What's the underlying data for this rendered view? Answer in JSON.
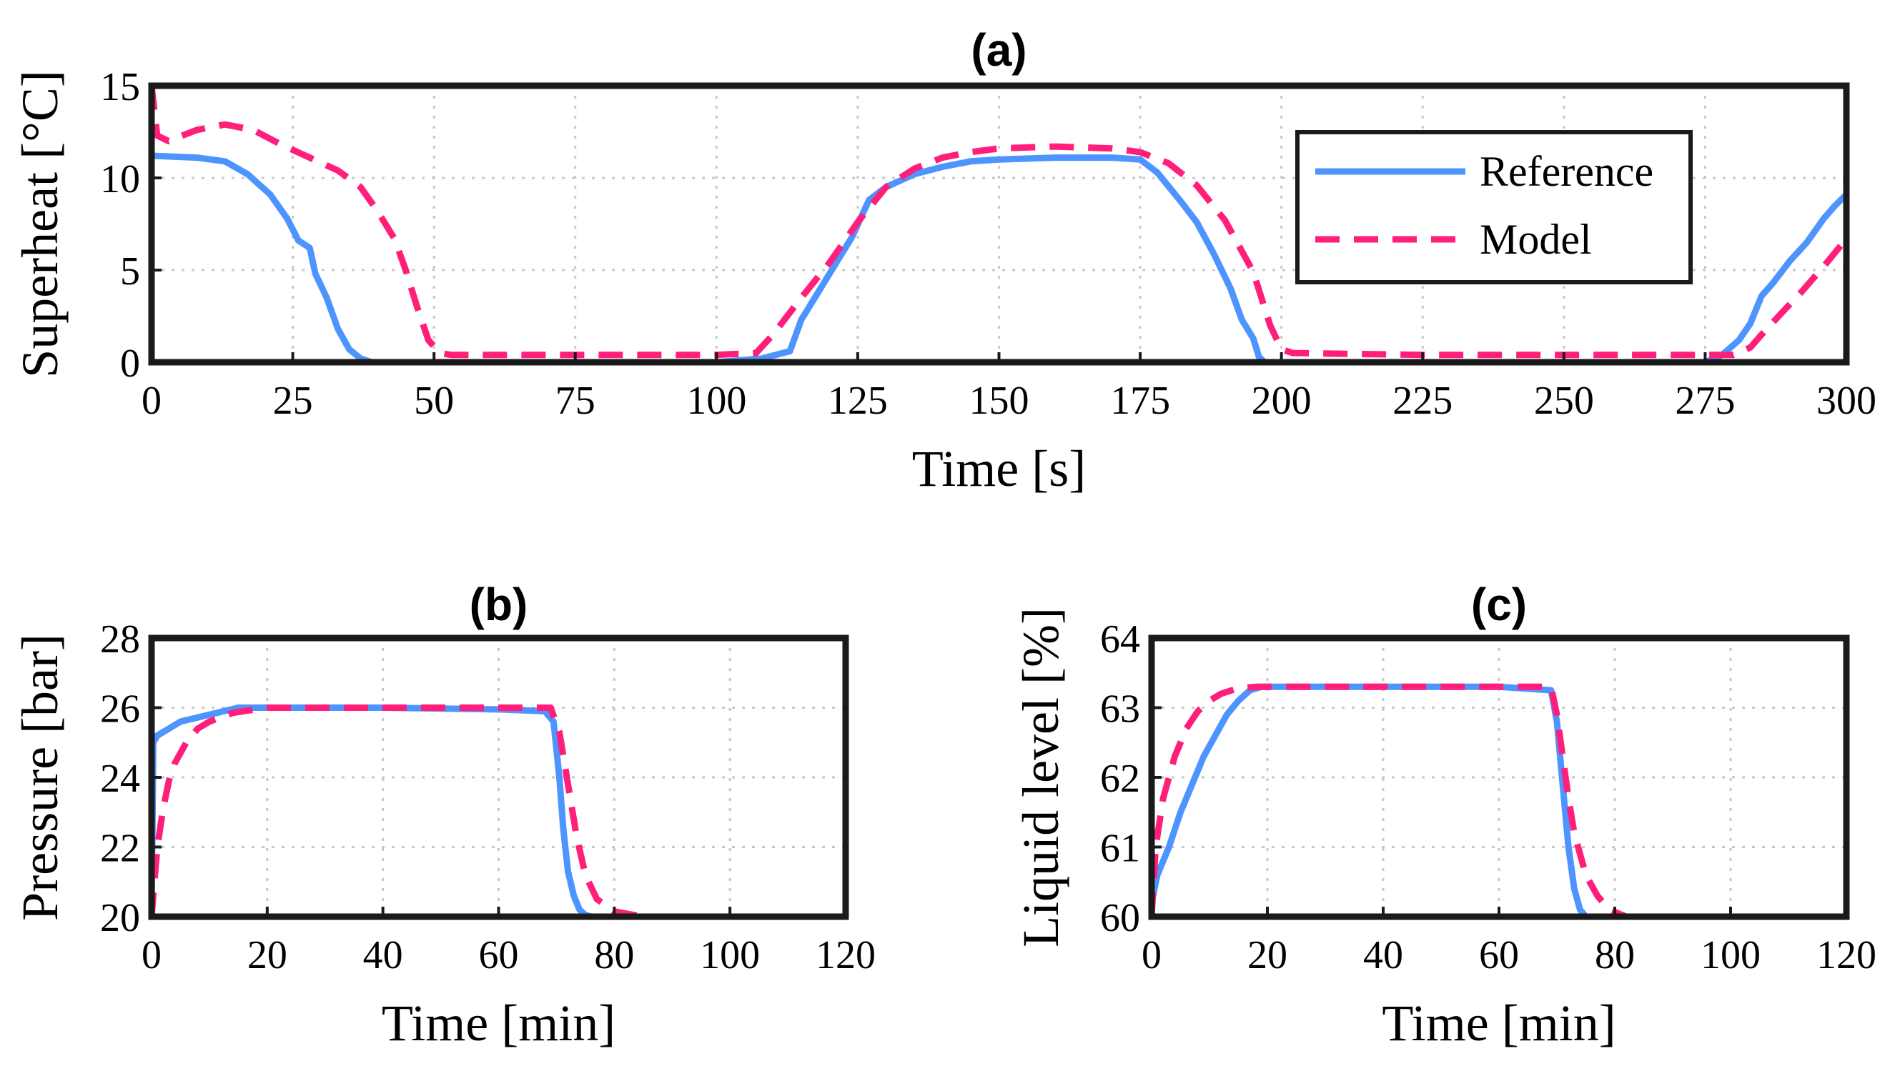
{
  "chart_data": [
    {
      "id": "a",
      "type": "line",
      "title": "(a)",
      "xlabel": "Time [s]",
      "ylabel": "Superheat [°C]",
      "xlim": [
        0,
        300
      ],
      "ylim": [
        0,
        15
      ],
      "xticks": [
        0,
        25,
        50,
        75,
        100,
        125,
        150,
        175,
        200,
        225,
        250,
        275,
        300
      ],
      "yticks": [
        0,
        5,
        10,
        15
      ],
      "grid": true,
      "legend": {
        "location": "top-right",
        "entries": [
          "Reference",
          "Model"
        ]
      },
      "series": [
        {
          "name": "Reference",
          "color": "#4d94ff",
          "style": "solid",
          "x": [
            0,
            8,
            13,
            17,
            21,
            24,
            26,
            28,
            29,
            31,
            33,
            35,
            37,
            39,
            45,
            60,
            80,
            100,
            108,
            113,
            115,
            118,
            121,
            124,
            127,
            130,
            135,
            140,
            145,
            150,
            160,
            170,
            175,
            178,
            182,
            185,
            188,
            191,
            193,
            195,
            196,
            197,
            200,
            225,
            250,
            275,
            278,
            281,
            283,
            285,
            287,
            290,
            293,
            296,
            298,
            300
          ],
          "y": [
            11.2,
            11.1,
            10.9,
            10.2,
            9.1,
            7.8,
            6.6,
            6.2,
            4.8,
            3.5,
            1.8,
            0.7,
            0.2,
            0,
            0,
            0,
            0,
            0,
            0.2,
            0.6,
            2.3,
            3.8,
            5.3,
            6.8,
            8.8,
            9.5,
            10.2,
            10.6,
            10.9,
            11.0,
            11.1,
            11.1,
            11.0,
            10.3,
            8.8,
            7.6,
            5.9,
            4.0,
            2.3,
            1.3,
            0.3,
            0,
            0,
            0,
            0,
            0,
            0.4,
            1.2,
            2.1,
            3.6,
            4.3,
            5.5,
            6.5,
            7.8,
            8.5,
            9.1
          ]
        },
        {
          "name": "Model",
          "color": "#ff1f7a",
          "style": "dashed",
          "x": [
            0,
            1,
            3,
            8,
            13,
            18,
            23,
            28,
            33,
            37,
            40,
            43,
            45,
            47,
            49,
            51,
            53,
            60,
            80,
            100,
            107,
            110,
            115,
            120,
            125,
            130,
            135,
            140,
            145,
            150,
            160,
            170,
            175,
            180,
            185,
            190,
            195,
            198,
            200,
            202,
            225,
            250,
            275,
            280,
            283,
            285,
            288,
            292,
            296,
            300
          ],
          "y": [
            15,
            12.3,
            12.0,
            12.6,
            12.9,
            12.6,
            11.8,
            11.1,
            10.4,
            9.5,
            8.2,
            6.7,
            5.0,
            3.0,
            1.2,
            0.5,
            0.4,
            0.4,
            0.4,
            0.4,
            0.5,
            1.5,
            3.5,
            5.4,
            7.6,
            9.5,
            10.5,
            11.1,
            11.4,
            11.6,
            11.7,
            11.6,
            11.4,
            10.8,
            9.6,
            7.7,
            4.9,
            2.0,
            0.7,
            0.5,
            0.4,
            0.4,
            0.4,
            0.4,
            0.8,
            1.5,
            2.5,
            3.8,
            5.2,
            6.7
          ]
        }
      ]
    },
    {
      "id": "b",
      "type": "line",
      "title": "(b)",
      "xlabel": "Time [min]",
      "ylabel": "Pressure [bar]",
      "xlim": [
        0,
        120
      ],
      "ylim": [
        20,
        28
      ],
      "xticks": [
        0,
        20,
        40,
        60,
        80,
        100,
        120
      ],
      "yticks": [
        20,
        22,
        24,
        26,
        28
      ],
      "grid": true,
      "series": [
        {
          "name": "Reference",
          "color": "#4d94ff",
          "style": "solid",
          "x": [
            0,
            0.3,
            1,
            3,
            5,
            10,
            15,
            20,
            40,
            60,
            68,
            69.5,
            70.5,
            71.2,
            72,
            73,
            74,
            75,
            76,
            78
          ],
          "y": [
            20,
            25.0,
            25.2,
            25.4,
            25.6,
            25.8,
            26.0,
            26.0,
            26.0,
            25.95,
            25.9,
            25.6,
            24.0,
            22.5,
            21.3,
            20.6,
            20.2,
            20.05,
            20.0,
            20.0
          ]
        },
        {
          "name": "Model",
          "color": "#ff1f7a",
          "style": "dashed",
          "x": [
            0,
            1,
            2,
            3,
            4,
            6,
            8,
            10,
            14,
            20,
            40,
            60,
            69,
            70.5,
            71.5,
            72.5,
            73.5,
            75,
            77,
            80,
            85,
            100,
            120
          ],
          "y": [
            20,
            22.0,
            23.1,
            23.9,
            24.4,
            25.0,
            25.4,
            25.6,
            25.85,
            26.0,
            26.0,
            26.0,
            26.0,
            25.3,
            24.3,
            23.3,
            22.3,
            21.2,
            20.5,
            20.15,
            20.0,
            20.0,
            20.0
          ]
        }
      ]
    },
    {
      "id": "c",
      "type": "line",
      "title": "(c)",
      "xlabel": "Time [min]",
      "ylabel": "Liquid level [%]",
      "xlim": [
        0,
        120
      ],
      "ylim": [
        60,
        64
      ],
      "xticks": [
        0,
        20,
        40,
        60,
        80,
        100,
        120
      ],
      "yticks": [
        60,
        61,
        62,
        63,
        64
      ],
      "grid": true,
      "series": [
        {
          "name": "Reference",
          "color": "#4d94ff",
          "style": "solid",
          "x": [
            0,
            1,
            3,
            5,
            7,
            9,
            11,
            13,
            15,
            17,
            19,
            40,
            60,
            69,
            70,
            71,
            72,
            73,
            74,
            75,
            76
          ],
          "y": [
            60.2,
            60.6,
            61.0,
            61.5,
            61.9,
            62.3,
            62.6,
            62.9,
            63.1,
            63.25,
            63.3,
            63.3,
            63.3,
            63.25,
            62.8,
            61.9,
            61.0,
            60.4,
            60.1,
            60.0,
            60.0
          ]
        },
        {
          "name": "Model",
          "color": "#ff1f7a",
          "style": "dashed",
          "x": [
            0,
            0.7,
            2,
            4,
            6,
            8,
            10,
            12,
            15,
            18,
            40,
            60,
            69,
            70,
            71,
            72,
            73,
            74,
            75,
            77,
            79,
            82,
            100,
            120
          ],
          "y": [
            60,
            61.0,
            61.7,
            62.3,
            62.7,
            62.95,
            63.1,
            63.2,
            63.28,
            63.3,
            63.3,
            63.3,
            63.3,
            62.9,
            62.3,
            61.7,
            61.2,
            60.9,
            60.6,
            60.3,
            60.1,
            60.0,
            60.0,
            60.0
          ]
        }
      ]
    }
  ]
}
